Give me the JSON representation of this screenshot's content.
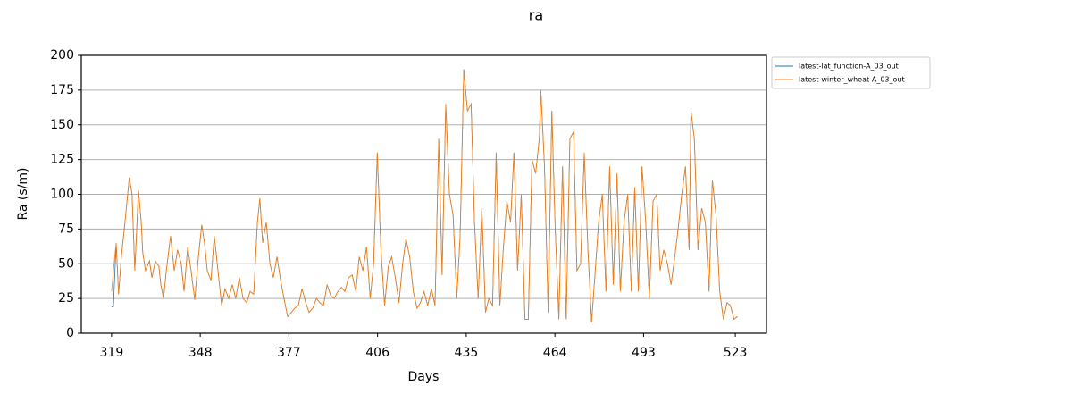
{
  "chart_data": {
    "type": "line",
    "title": "ra",
    "xlabel": "Days",
    "ylabel": "Ra (s/m)",
    "xlim": [
      309.1,
      533.2
    ],
    "xticks": [
      319,
      348,
      377,
      406,
      435,
      464,
      493,
      523
    ],
    "ylim": [
      0,
      200
    ],
    "yticks": [
      0,
      25,
      50,
      75,
      100,
      125,
      150,
      175,
      200
    ],
    "grid": "y",
    "legend": "outside upper right",
    "x": [
      319,
      319.6,
      320.5,
      321.3,
      322.2,
      323.4,
      324.8,
      325.7,
      326.6,
      327.8,
      328.7,
      329.2,
      330.1,
      331.4,
      332.2,
      333.3,
      334.5,
      335.1,
      336,
      336.9,
      338.3,
      339.5,
      340.6,
      341.8,
      342.7,
      343.9,
      345,
      346.2,
      347.4,
      348.5,
      349.4,
      350.3,
      351.5,
      352.6,
      353.8,
      355,
      356.1,
      357.3,
      358.5,
      359.6,
      360.8,
      362,
      363.2,
      364.3,
      365.5,
      366.7,
      367.5,
      368.4,
      369.6,
      370.8,
      371.9,
      373.1,
      374.3,
      375.4,
      376.6,
      377.8,
      378.9,
      380.1,
      381.3,
      382.5,
      383.6,
      384.8,
      386,
      387.1,
      388.3,
      389.5,
      390.7,
      391.8,
      393,
      394.2,
      395.3,
      396.5,
      397.7,
      398.9,
      400,
      401.2,
      402.4,
      403.6,
      404.7,
      405.9,
      407.1,
      408.3,
      409.5,
      410.6,
      411.8,
      413,
      414.2,
      415.3,
      416.5,
      417.7,
      418.9,
      420,
      421.2,
      422.4,
      423.6,
      424.8,
      426,
      427.1,
      428.3,
      429.5,
      430.7,
      431.9,
      433,
      434.2,
      435.4,
      436.6,
      437.7,
      438.9,
      440.1,
      441.3,
      442.4,
      443.6,
      444.8,
      446,
      447.1,
      448.3,
      449.5,
      450.6,
      451.8,
      453,
      454.2,
      455.3,
      456.5,
      457.7,
      458.9,
      459.4,
      460.6,
      461.8,
      463,
      464.1,
      465.3,
      466.5,
      467.7,
      468.9,
      470.1,
      471.2,
      472.4,
      473.6,
      474.8,
      476,
      477.2,
      478.3,
      479.5,
      480.7,
      481.9,
      483.1,
      484.3,
      485.4,
      486.6,
      487.8,
      489,
      490.1,
      491.3,
      492.5,
      493.7,
      494.9,
      496.1,
      497.3,
      498.4,
      499.6,
      500.8,
      502,
      503.2,
      504.3,
      505.5,
      506.7,
      507.9,
      508.5,
      509.6,
      510.8,
      512,
      513.2,
      514.4,
      515.5,
      516.7,
      517.9,
      519.1,
      520.3,
      521.4,
      522.6,
      523.7
    ],
    "series": [
      {
        "name": "latest-lat_function-A_03_out",
        "color": "#1f77b4",
        "values": [
          19,
          19,
          65,
          28,
          55,
          80,
          112,
          100,
          45,
          103,
          80,
          58,
          45,
          52,
          40,
          52,
          48,
          35,
          25,
          45,
          70,
          45,
          60,
          50,
          30,
          62,
          45,
          24,
          55,
          78,
          65,
          45,
          38,
          70,
          45,
          20,
          32,
          25,
          35,
          25,
          40,
          25,
          22,
          30,
          28,
          80,
          97,
          65,
          80,
          50,
          40,
          55,
          38,
          25,
          12,
          15,
          18,
          20,
          32,
          22,
          15,
          18,
          25,
          22,
          20,
          35,
          27,
          25,
          30,
          33,
          30,
          40,
          42,
          30,
          55,
          45,
          62,
          25,
          50,
          130,
          60,
          20,
          48,
          55,
          40,
          22,
          50,
          68,
          55,
          30,
          18,
          22,
          30,
          20,
          32,
          20,
          140,
          42,
          165,
          100,
          85,
          25,
          70,
          190,
          160,
          165,
          80,
          25,
          90,
          15,
          25,
          20,
          130,
          20,
          60,
          95,
          80,
          130,
          45,
          100,
          10,
          10,
          125,
          115,
          140,
          175,
          120,
          15,
          160,
          75,
          10,
          120,
          10,
          140,
          145,
          45,
          50,
          130,
          60,
          8,
          45,
          80,
          100,
          30,
          120,
          35,
          115,
          30,
          80,
          100,
          30,
          105,
          30,
          120,
          80,
          25,
          95,
          100,
          45,
          60,
          50,
          35,
          55,
          75,
          100,
          120,
          60,
          160,
          140,
          60,
          90,
          80,
          30,
          110,
          85,
          30,
          10,
          22,
          20,
          10,
          12
        ]
      },
      {
        "name": "latest-winter_wheat-A_03_out",
        "color": "#ff7f0e",
        "values": [
          30,
          45,
          65,
          28,
          55,
          80,
          112,
          100,
          45,
          103,
          80,
          58,
          45,
          52,
          40,
          52,
          48,
          35,
          25,
          45,
          70,
          45,
          60,
          50,
          30,
          62,
          45,
          24,
          55,
          78,
          65,
          45,
          38,
          70,
          45,
          20,
          32,
          25,
          35,
          25,
          40,
          25,
          22,
          30,
          28,
          80,
          97,
          65,
          80,
          50,
          40,
          55,
          38,
          25,
          12,
          15,
          18,
          20,
          32,
          22,
          15,
          18,
          25,
          22,
          20,
          35,
          27,
          25,
          30,
          33,
          30,
          40,
          42,
          30,
          55,
          45,
          62,
          25,
          50,
          130,
          60,
          20,
          48,
          55,
          40,
          22,
          50,
          68,
          55,
          30,
          18,
          22,
          30,
          20,
          32,
          20,
          140,
          42,
          165,
          100,
          85,
          25,
          70,
          190,
          160,
          165,
          80,
          25,
          90,
          15,
          25,
          20,
          130,
          20,
          60,
          95,
          80,
          130,
          45,
          100,
          10,
          10,
          125,
          115,
          140,
          175,
          120,
          15,
          160,
          75,
          10,
          120,
          10,
          140,
          145,
          45,
          50,
          130,
          60,
          8,
          45,
          80,
          100,
          30,
          120,
          35,
          115,
          30,
          80,
          100,
          30,
          105,
          30,
          120,
          80,
          25,
          95,
          100,
          45,
          60,
          50,
          35,
          55,
          75,
          100,
          120,
          60,
          160,
          140,
          60,
          90,
          80,
          30,
          110,
          85,
          30,
          10,
          22,
          20,
          10,
          12
        ]
      }
    ]
  }
}
